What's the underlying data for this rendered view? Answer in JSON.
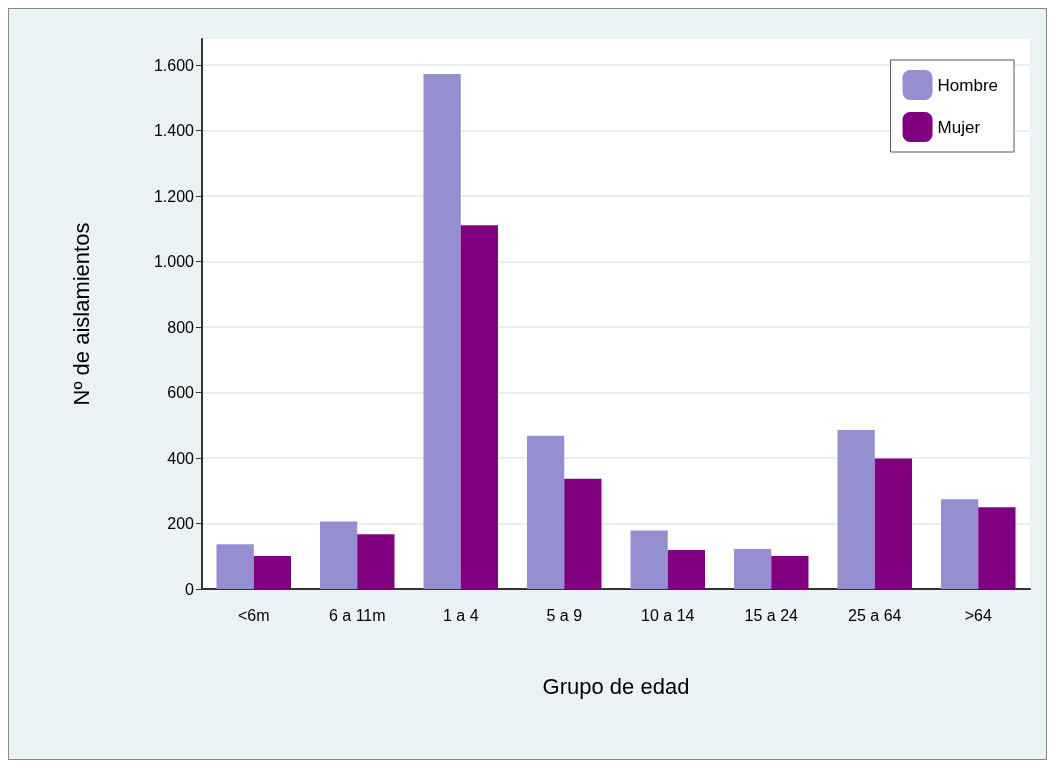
{
  "chart_data": {
    "type": "bar",
    "xlabel": "Grupo de edad",
    "ylabel": "Nº de aislamientos",
    "categories": [
      "<6m",
      "6 a 11m",
      "1 a 4",
      "5 a 9",
      "10 a 14",
      "15 a 24",
      "25 a 64",
      ">64"
    ],
    "series": [
      {
        "name": "Hombre",
        "color": "#958fd1",
        "values": [
          137,
          206,
          1573,
          468,
          179,
          122,
          486,
          274
        ]
      },
      {
        "name": "Mujer",
        "color": "#800080",
        "values": [
          101,
          167,
          1111,
          337,
          119,
          101,
          399,
          250
        ]
      }
    ],
    "ylim": [
      0,
      1680
    ],
    "yticks": [
      0,
      {
        "value": 200,
        "label": "200"
      },
      {
        "value": 400,
        "label": "400"
      },
      {
        "value": 600,
        "label": "600"
      },
      {
        "value": 800,
        "label": "800"
      },
      {
        "value": 1000,
        "label": "1.000"
      },
      {
        "value": 1200,
        "label": "1.200"
      },
      {
        "value": 1400,
        "label": "1.400"
      },
      {
        "value": 1600,
        "label": "1.600"
      }
    ],
    "grid": "y",
    "legend": "top right"
  }
}
